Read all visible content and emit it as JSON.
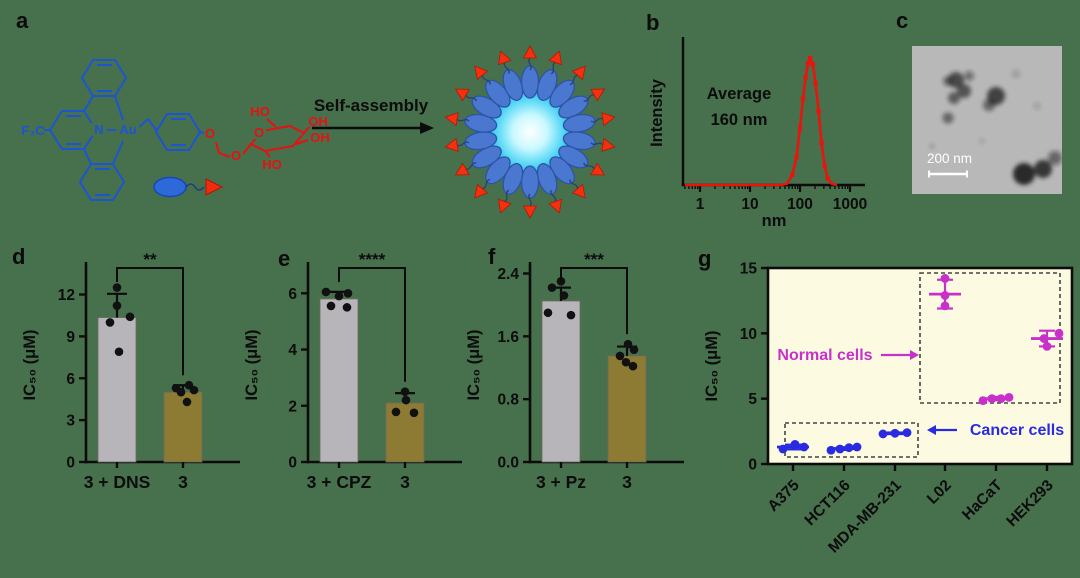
{
  "figure": {
    "bg": "#47704d"
  },
  "panels": {
    "a": {
      "label": "a",
      "self_assembly_label": "Self-assembly",
      "structure": {
        "f3c": "F₃C",
        "n": "N",
        "au": "Au",
        "o_ether": "O",
        "o_chain": "O",
        "o_ring": "O",
        "ho_top": "HO",
        "oh_upper": "OH",
        "oh_lower": "OH",
        "ho_bottom": "HO"
      },
      "colors": {
        "ligand_blue": "#1b55d4",
        "sugar_red": "#e81010",
        "triangle_red": "#ef2b10"
      }
    },
    "b": {
      "label": "b"
    },
    "c": {
      "label": "c",
      "scale_bar_label": "200 nm"
    },
    "d": {
      "label": "d"
    },
    "e": {
      "label": "e"
    },
    "f": {
      "label": "f"
    },
    "g": {
      "label": "g"
    }
  },
  "chart_data": [
    {
      "panel": "b",
      "type": "line",
      "color": "#e8150d",
      "title": "",
      "xlabel": "nm",
      "ylabel": "Intensity",
      "xscale": "log",
      "xticks": [
        "1",
        "10",
        "100",
        "1000"
      ],
      "annotation": [
        "Average",
        "160 nm"
      ],
      "peak_nm": 160,
      "points": [
        [
          0.5,
          0
        ],
        [
          40,
          0
        ],
        [
          55,
          0.01
        ],
        [
          70,
          0.08
        ],
        [
          85,
          0.22
        ],
        [
          100,
          0.45
        ],
        [
          115,
          0.68
        ],
        [
          130,
          0.85
        ],
        [
          145,
          0.96
        ],
        [
          160,
          1.0
        ],
        [
          180,
          0.95
        ],
        [
          205,
          0.8
        ],
        [
          235,
          0.58
        ],
        [
          270,
          0.33
        ],
        [
          310,
          0.15
        ],
        [
          360,
          0.05
        ],
        [
          430,
          0.01
        ],
        [
          550,
          0
        ]
      ]
    },
    {
      "panel": "d",
      "type": "bar",
      "ylabel": "IC₅₀ (μM)",
      "categories": [
        "3 + DNS",
        "3"
      ],
      "means": [
        10.35,
        5.0
      ],
      "errors": [
        1.7,
        0.5
      ],
      "points": [
        [
          12.5,
          11.2,
          10.4,
          10.0,
          7.9
        ],
        [
          5.5,
          5.3,
          5.15,
          5.0,
          4.3
        ]
      ],
      "yticks": [
        "0",
        "3",
        "6",
        "9",
        "12"
      ],
      "ylim": [
        0,
        13.9
      ],
      "bar_colors": [
        "#b7b4ba",
        "#8e7b33"
      ],
      "significance": "**"
    },
    {
      "panel": "e",
      "type": "bar",
      "ylabel": "IC₅₀ (μM)",
      "categories": [
        "3 + CPZ",
        "3"
      ],
      "means": [
        5.8,
        2.1
      ],
      "errors": [
        0.25,
        0.35
      ],
      "points": [
        [
          6.05,
          6.0,
          5.9,
          5.55,
          5.5
        ],
        [
          2.5,
          2.2,
          1.78,
          1.75
        ]
      ],
      "yticks": [
        "0",
        "2",
        "4",
        "6"
      ],
      "ylim": [
        0,
        6.9
      ],
      "bar_colors": [
        "#b7b4ba",
        "#8e7b33"
      ],
      "significance": "****"
    },
    {
      "panel": "f",
      "type": "bar",
      "ylabel": "IC₅₀ (μM)",
      "categories": [
        "3 + Pz",
        "3"
      ],
      "means": [
        2.05,
        1.35
      ],
      "errors": [
        0.17,
        0.12
      ],
      "points": [
        [
          2.3,
          2.22,
          2.12,
          1.9,
          1.87
        ],
        [
          1.5,
          1.43,
          1.35,
          1.27,
          1.22
        ]
      ],
      "yticks": [
        "0.0",
        "0.8",
        "1.6",
        "2.4"
      ],
      "ylim": [
        0,
        2.47
      ],
      "bar_colors": [
        "#b7b4ba",
        "#8e7b33"
      ],
      "significance": "***"
    },
    {
      "panel": "g",
      "type": "scatter",
      "ylabel": "IC₅₀ (μM)",
      "categories": [
        "A375",
        "HCT116",
        "MDA-MB-231",
        "L02",
        "HaCaT",
        "HEK293"
      ],
      "yticks": [
        "0",
        "5",
        "10",
        "15"
      ],
      "ylim": [
        0,
        15
      ],
      "plot_bg": "#fcfbe2",
      "series": [
        {
          "name": "Cancer cells",
          "color": "#2a2ae0",
          "cat_indices": [
            0,
            1,
            2
          ],
          "means": [
            1.3,
            1.18,
            2.35
          ],
          "errors": [
            0.18,
            0.1,
            0.06
          ],
          "points": [
            [
              1.5,
              1.3,
              1.15
            ],
            [
              1.3,
              1.25,
              1.15,
              1.05
            ],
            [
              2.4,
              2.35,
              2.3
            ]
          ]
        },
        {
          "name": "Normal cells",
          "color": "#c92fc9",
          "cat_indices": [
            3,
            4,
            5
          ],
          "means": [
            13.0,
            5.0,
            9.6
          ],
          "errors": [
            1.1,
            0.12,
            0.6
          ],
          "points": [
            [
              14.2,
              12.9,
              12.1
            ],
            [
              4.85,
              5.0,
              5.0,
              5.1
            ],
            [
              10.0,
              9.6,
              9.0
            ]
          ]
        }
      ],
      "annotations": [
        {
          "text": "Normal cells",
          "color": "#c92fc9",
          "arrow": "right"
        },
        {
          "text": "Cancer cells",
          "color": "#2a2ae0",
          "arrow": "left"
        }
      ]
    }
  ]
}
